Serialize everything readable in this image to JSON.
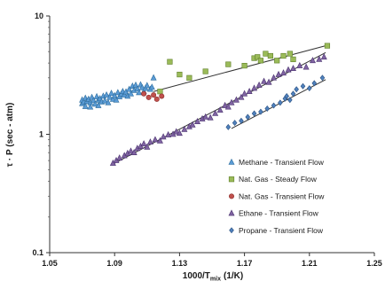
{
  "chart_data": {
    "type": "scatter",
    "xlabel": "1000/T",
    "xlabel_sub": "mix",
    "xlabel_unit": "(1/K)",
    "ylabel": "τ · P (sec - atm)",
    "xlim": [
      1.05,
      1.25
    ],
    "ylim": [
      0.1,
      10
    ],
    "yscale": "log",
    "xticks": [
      "1.05",
      "1.09",
      "1.13",
      "1.17",
      "1.21",
      "1.25"
    ],
    "yticks": [
      "0.1",
      "1",
      "10"
    ],
    "grid": false,
    "legend_position": "right",
    "series": [
      {
        "name": "Methane - Transient Flow",
        "marker": "triangle",
        "color": "#5b9bd5",
        "stroke": "#2e6e9e",
        "points": [
          [
            1.07,
            1.82
          ],
          [
            1.07,
            1.95
          ],
          [
            1.071,
            1.88
          ],
          [
            1.072,
            2.02
          ],
          [
            1.072,
            1.72
          ],
          [
            1.073,
            1.9
          ],
          [
            1.074,
            1.98
          ],
          [
            1.075,
            1.85
          ],
          [
            1.075,
            1.7
          ],
          [
            1.076,
            2.05
          ],
          [
            1.077,
            1.93
          ],
          [
            1.078,
            1.8
          ],
          [
            1.079,
            2.08
          ],
          [
            1.08,
            1.95
          ],
          [
            1.08,
            1.75
          ],
          [
            1.081,
            2.0
          ],
          [
            1.082,
            1.88
          ],
          [
            1.083,
            2.1
          ],
          [
            1.084,
            1.92
          ],
          [
            1.085,
            2.15
          ],
          [
            1.086,
            1.85
          ],
          [
            1.087,
            2.05
          ],
          [
            1.088,
            2.22
          ],
          [
            1.089,
            1.98
          ],
          [
            1.09,
            2.12
          ],
          [
            1.091,
            1.95
          ],
          [
            1.092,
            2.25
          ],
          [
            1.093,
            2.08
          ],
          [
            1.094,
            2.18
          ],
          [
            1.095,
            2.3
          ],
          [
            1.096,
            2.15
          ],
          [
            1.097,
            2.28
          ],
          [
            1.098,
            2.1
          ],
          [
            1.099,
            2.4
          ],
          [
            1.1,
            2.2
          ],
          [
            1.101,
            2.55
          ],
          [
            1.102,
            2.35
          ],
          [
            1.103,
            2.6
          ],
          [
            1.104,
            2.42
          ],
          [
            1.105,
            2.25
          ],
          [
            1.106,
            2.62
          ],
          [
            1.107,
            2.48
          ],
          [
            1.108,
            2.3
          ],
          [
            1.109,
            2.45
          ],
          [
            1.11,
            2.58
          ],
          [
            1.112,
            2.4
          ],
          [
            1.113,
            2.5
          ],
          [
            1.114,
            3.0
          ]
        ]
      },
      {
        "name": "Nat. Gas - Steady Flow",
        "marker": "square",
        "color": "#9bbb59",
        "stroke": "#5f7f2a",
        "points": [
          [
            1.118,
            2.3
          ],
          [
            1.124,
            4.1
          ],
          [
            1.13,
            3.2
          ],
          [
            1.136,
            3.0
          ],
          [
            1.146,
            3.4
          ],
          [
            1.16,
            3.9
          ],
          [
            1.17,
            3.8
          ],
          [
            1.176,
            4.4
          ],
          [
            1.178,
            4.5
          ],
          [
            1.18,
            4.2
          ],
          [
            1.183,
            4.8
          ],
          [
            1.186,
            4.6
          ],
          [
            1.19,
            4.2
          ],
          [
            1.194,
            4.6
          ],
          [
            1.198,
            4.8
          ],
          [
            1.2,
            4.3
          ],
          [
            1.221,
            5.6
          ]
        ]
      },
      {
        "name": "Nat. Gas - Transient Flow",
        "marker": "circle",
        "color": "#c0504d",
        "stroke": "#8b2e2b",
        "points": [
          [
            1.108,
            2.2
          ],
          [
            1.111,
            2.05
          ],
          [
            1.114,
            2.15
          ],
          [
            1.116,
            1.98
          ],
          [
            1.119,
            2.1
          ]
        ]
      },
      {
        "name": "Ethane - Transient Flow",
        "marker": "triangle",
        "color": "#8064a2",
        "stroke": "#4b3370",
        "points": [
          [
            1.089,
            0.57
          ],
          [
            1.091,
            0.6
          ],
          [
            1.093,
            0.63
          ],
          [
            1.096,
            0.66
          ],
          [
            1.098,
            0.69
          ],
          [
            1.1,
            0.72
          ],
          [
            1.102,
            0.7
          ],
          [
            1.104,
            0.76
          ],
          [
            1.106,
            0.79
          ],
          [
            1.108,
            0.83
          ],
          [
            1.11,
            0.78
          ],
          [
            1.112,
            0.86
          ],
          [
            1.115,
            0.9
          ],
          [
            1.118,
            0.88
          ],
          [
            1.12,
            0.95
          ],
          [
            1.123,
            0.99
          ],
          [
            1.126,
            1.0
          ],
          [
            1.128,
            1.05
          ],
          [
            1.13,
            1.02
          ],
          [
            1.133,
            1.1
          ],
          [
            1.136,
            1.16
          ],
          [
            1.138,
            1.2
          ],
          [
            1.141,
            1.28
          ],
          [
            1.144,
            1.35
          ],
          [
            1.146,
            1.4
          ],
          [
            1.149,
            1.38
          ],
          [
            1.152,
            1.5
          ],
          [
            1.155,
            1.6
          ],
          [
            1.158,
            1.75
          ],
          [
            1.16,
            1.7
          ],
          [
            1.162,
            1.85
          ],
          [
            1.165,
            1.95
          ],
          [
            1.168,
            2.05
          ],
          [
            1.17,
            2.2
          ],
          [
            1.173,
            2.3
          ],
          [
            1.176,
            2.45
          ],
          [
            1.179,
            2.6
          ],
          [
            1.182,
            2.8
          ],
          [
            1.185,
            2.75
          ],
          [
            1.188,
            3.0
          ],
          [
            1.191,
            3.2
          ],
          [
            1.194,
            3.3
          ],
          [
            1.197,
            3.5
          ],
          [
            1.2,
            3.6
          ],
          [
            1.204,
            3.8
          ],
          [
            1.208,
            3.7
          ],
          [
            1.212,
            4.2
          ],
          [
            1.216,
            4.3
          ],
          [
            1.219,
            4.5
          ]
        ]
      },
      {
        "name": "Propane - Transient Flow",
        "marker": "diamond",
        "color": "#4f81bd",
        "stroke": "#2a4f7f",
        "points": [
          [
            1.16,
            1.15
          ],
          [
            1.164,
            1.25
          ],
          [
            1.168,
            1.3
          ],
          [
            1.172,
            1.4
          ],
          [
            1.176,
            1.5
          ],
          [
            1.18,
            1.55
          ],
          [
            1.184,
            1.65
          ],
          [
            1.188,
            1.75
          ],
          [
            1.192,
            1.85
          ],
          [
            1.195,
            2.0
          ],
          [
            1.196,
            2.1
          ],
          [
            1.198,
            1.95
          ],
          [
            1.2,
            2.2
          ],
          [
            1.202,
            2.4
          ],
          [
            1.206,
            2.55
          ],
          [
            1.21,
            2.45
          ],
          [
            1.213,
            2.7
          ],
          [
            1.218,
            3.0
          ]
        ]
      }
    ],
    "fit_lines": [
      {
        "series": "Nat. Gas - Steady Flow",
        "from": [
          1.114,
          2.3
        ],
        "to": [
          1.222,
          5.7
        ]
      },
      {
        "series": "Ethane - Transient Flow",
        "from": [
          1.089,
          0.56
        ],
        "to": [
          1.22,
          4.9
        ]
      },
      {
        "series": "Propane - Transient Flow",
        "from": [
          1.162,
          1.12
        ],
        "to": [
          1.22,
          2.9
        ]
      }
    ]
  }
}
